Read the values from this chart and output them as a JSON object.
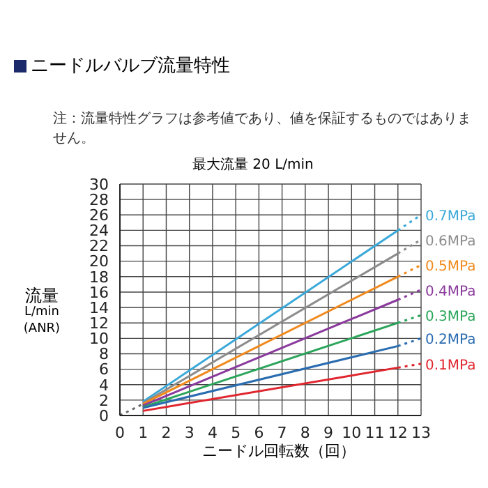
{
  "chart_data": {
    "type": "line",
    "title": "ニードルバルブ流量特性",
    "subtitle": "最大流量 20 L/min",
    "annotations": [
      "注：流量特性グラフは参考値であり、値を保証するものではありません。"
    ],
    "xlabel": "ニードル回転数（回）",
    "ylabel": "流量\nL/min\n(ANR)",
    "xlim": [
      0,
      13
    ],
    "xticks": [
      0,
      1,
      2,
      3,
      4,
      5,
      6,
      7,
      8,
      9,
      10,
      11,
      12,
      13
    ],
    "ylim": [
      0,
      30
    ],
    "yticks": [
      0,
      2,
      4,
      6,
      8,
      10,
      12,
      14,
      16,
      18,
      20,
      22,
      24,
      26,
      28,
      30
    ],
    "grid": true,
    "marker": "none",
    "series": [
      {
        "name": "0.7MPa",
        "color": "#3aa8d8",
        "line_style": "solid",
        "x": [
          1,
          12
        ],
        "values": [
          1.8,
          24
        ]
      },
      {
        "name": "0.6MPa",
        "color": "#8c8c8c",
        "line_style": "solid",
        "x": [
          1,
          12
        ],
        "values": [
          1.6,
          21
        ]
      },
      {
        "name": "0.5MPa",
        "color": "#f08a1e",
        "line_style": "solid",
        "x": [
          1,
          12
        ],
        "values": [
          1.5,
          18
        ]
      },
      {
        "name": "0.4MPa",
        "color": "#8a3a9c",
        "line_style": "solid",
        "x": [
          1,
          12
        ],
        "values": [
          1.3,
          15
        ]
      },
      {
        "name": "0.3MPa",
        "color": "#2aa55a",
        "line_style": "solid",
        "x": [
          1,
          12
        ],
        "values": [
          1.1,
          12
        ]
      },
      {
        "name": "0.2MPa",
        "color": "#2a6cb0",
        "line_style": "solid",
        "x": [
          1,
          12
        ],
        "values": [
          1,
          9
        ]
      },
      {
        "name": "0.1MPa",
        "color": "#e0262e",
        "line_style": "solid",
        "x": [
          1,
          12
        ],
        "values": [
          0.6,
          6.2
        ]
      },
      {
        "color": "#3aa8d8",
        "line_style": "dotted",
        "x": [
          12,
          13
        ],
        "values": [
          24,
          26
        ]
      },
      {
        "color": "#8c8c8c",
        "line_style": "dotted",
        "x": [
          12,
          13
        ],
        "values": [
          21,
          22.8
        ]
      },
      {
        "color": "#f08a1e",
        "line_style": "dotted",
        "x": [
          12,
          13
        ],
        "values": [
          18,
          19.5
        ]
      },
      {
        "color": "#8a3a9c",
        "line_style": "dotted",
        "x": [
          12,
          13
        ],
        "values": [
          15,
          16.3
        ]
      },
      {
        "color": "#2aa55a",
        "line_style": "dotted",
        "x": [
          12,
          13
        ],
        "values": [
          12,
          13
        ]
      },
      {
        "color": "#2a6cb0",
        "line_style": "dotted",
        "x": [
          12,
          13
        ],
        "values": [
          9,
          10
        ]
      },
      {
        "color": "#e0262e",
        "line_style": "dotted",
        "x": [
          12,
          13
        ],
        "values": [
          6.2,
          6.7
        ]
      },
      {
        "color": "#666666",
        "line_style": "dotted",
        "x": [
          0,
          1
        ],
        "values": [
          0,
          1.5
        ]
      }
    ]
  }
}
